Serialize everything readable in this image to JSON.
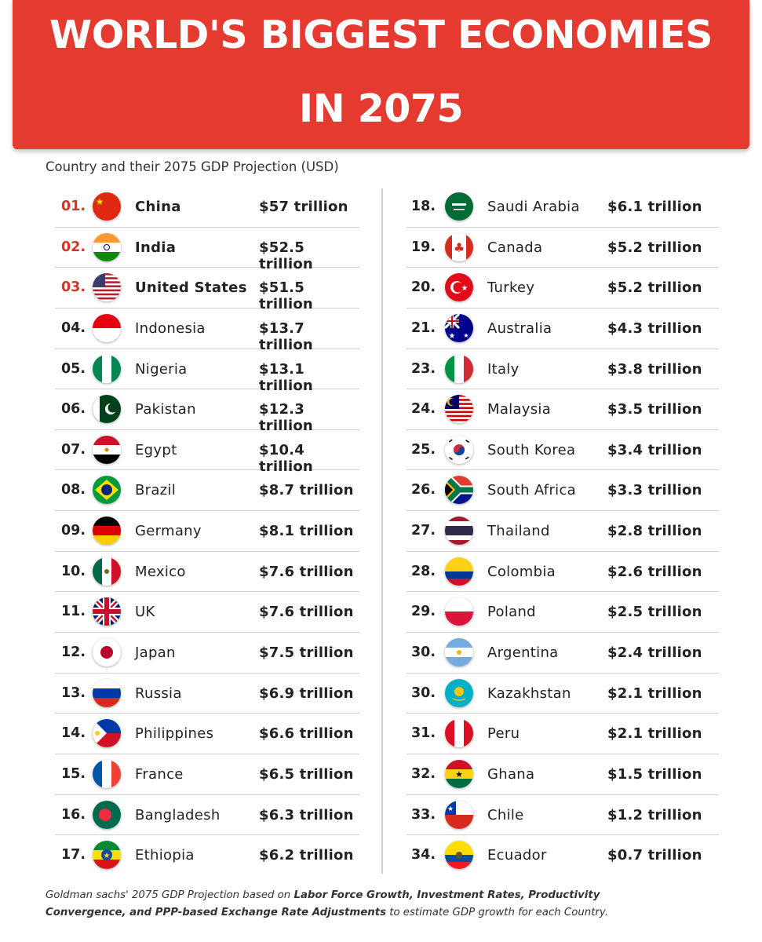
{
  "title_line1": "WORLD'S BIGGEST ECONOMIES",
  "title_line2": "IN 2075",
  "subtitle": "Country and their 2075 GDP Projection (USD)",
  "left": [
    {
      "rank": "01.",
      "country": "China",
      "gdp": "$57 trillion",
      "flag": "china-flag-icon",
      "top": true
    },
    {
      "rank": "02.",
      "country": "India",
      "gdp": "$52.5 trillion",
      "flag": "india-flag-icon",
      "top": true
    },
    {
      "rank": "03.",
      "country": "United States",
      "gdp": "$51.5 trillion",
      "flag": "united-states-flag-icon",
      "top": true
    },
    {
      "rank": "04.",
      "country": "Indonesia",
      "gdp": "$13.7 trillion",
      "flag": "indonesia-flag-icon"
    },
    {
      "rank": "05.",
      "country": "Nigeria",
      "gdp": "$13.1 trillion",
      "flag": "nigeria-flag-icon"
    },
    {
      "rank": "06.",
      "country": "Pakistan",
      "gdp": "$12.3 trillion",
      "flag": "pakistan-flag-icon"
    },
    {
      "rank": "07.",
      "country": "Egypt",
      "gdp": "$10.4 trillion",
      "flag": "egypt-flag-icon"
    },
    {
      "rank": "08.",
      "country": "Brazil",
      "gdp": "$8.7 trillion",
      "flag": "brazil-flag-icon"
    },
    {
      "rank": "09.",
      "country": "Germany",
      "gdp": "$8.1 trillion",
      "flag": "germany-flag-icon"
    },
    {
      "rank": "10.",
      "country": "Mexico",
      "gdp": "$7.6 trillion",
      "flag": "mexico-flag-icon"
    },
    {
      "rank": "11.",
      "country": "UK",
      "gdp": "$7.6 trillion",
      "flag": "uk-flag-icon"
    },
    {
      "rank": "12.",
      "country": "Japan",
      "gdp": "$7.5 trillion",
      "flag": "japan-flag-icon"
    },
    {
      "rank": "13.",
      "country": "Russia",
      "gdp": "$6.9 trillion",
      "flag": "russia-flag-icon"
    },
    {
      "rank": "14.",
      "country": "Philippines",
      "gdp": "$6.6 trillion",
      "flag": "philippines-flag-icon"
    },
    {
      "rank": "15.",
      "country": "France",
      "gdp": "$6.5 trillion",
      "flag": "france-flag-icon"
    },
    {
      "rank": "16.",
      "country": "Bangladesh",
      "gdp": "$6.3 trillion",
      "flag": "bangladesh-flag-icon"
    },
    {
      "rank": "17.",
      "country": "Ethiopia",
      "gdp": "$6.2 trillion",
      "flag": "ethiopia-flag-icon"
    }
  ],
  "right": [
    {
      "rank": "18.",
      "country": "Saudi Arabia",
      "gdp": "$6.1 trillion",
      "flag": "saudi-arabia-flag-icon"
    },
    {
      "rank": "19.",
      "country": "Canada",
      "gdp": "$5.2 trillion",
      "flag": "canada-flag-icon"
    },
    {
      "rank": "20.",
      "country": "Turkey",
      "gdp": "$5.2 trillion",
      "flag": "turkey-flag-icon"
    },
    {
      "rank": "21.",
      "country": "Australia",
      "gdp": "$4.3 trillion",
      "flag": "australia-flag-icon"
    },
    {
      "rank": "23.",
      "country": "Italy",
      "gdp": "$3.8 trillion",
      "flag": "italy-flag-icon"
    },
    {
      "rank": "24.",
      "country": "Malaysia",
      "gdp": "$3.5 trillion",
      "flag": "malaysia-flag-icon"
    },
    {
      "rank": "25.",
      "country": "South Korea",
      "gdp": "$3.4 trillion",
      "flag": "south-korea-flag-icon"
    },
    {
      "rank": "26.",
      "country": "South Africa",
      "gdp": "$3.3 trillion",
      "flag": "south-africa-flag-icon"
    },
    {
      "rank": "27.",
      "country": "Thailand",
      "gdp": "$2.8 trillion",
      "flag": "thailand-flag-icon"
    },
    {
      "rank": "28.",
      "country": "Colombia",
      "gdp": "$2.6 trillion",
      "flag": "colombia-flag-icon"
    },
    {
      "rank": "29.",
      "country": "Poland",
      "gdp": "$2.5 trillion",
      "flag": "poland-flag-icon"
    },
    {
      "rank": "30.",
      "country": "Argentina",
      "gdp": "$2.4 trillion",
      "flag": "argentina-flag-icon"
    },
    {
      "rank": "30.",
      "country": "Kazakhstan",
      "gdp": "$2.1 trillion",
      "flag": "kazakhstan-flag-icon"
    },
    {
      "rank": "31.",
      "country": "Peru",
      "gdp": "$2.1 trillion",
      "flag": "peru-flag-icon"
    },
    {
      "rank": "32.",
      "country": "Ghana",
      "gdp": "$1.5 trillion",
      "flag": "ghana-flag-icon"
    },
    {
      "rank": "33.",
      "country": "Chile",
      "gdp": "$1.2 trillion",
      "flag": "chile-flag-icon"
    },
    {
      "rank": "34.",
      "country": "Ecuador",
      "gdp": "$0.7 trillion",
      "flag": "ecuador-flag-icon"
    }
  ],
  "footnote": {
    "part1": "Goldman sachs' 2075 GDP Projection based on ",
    "bold1": "Labor Force Growth, Investment Rates, Productivity",
    "bold2": "Convergence, and PPP-based Exchange Rate Adjustments",
    "part2": " to estimate GDP growth for each Country."
  },
  "colors": {
    "banner": "#e53a2f",
    "top_rank": "#d2342a",
    "divider": "#cfcfcf"
  }
}
